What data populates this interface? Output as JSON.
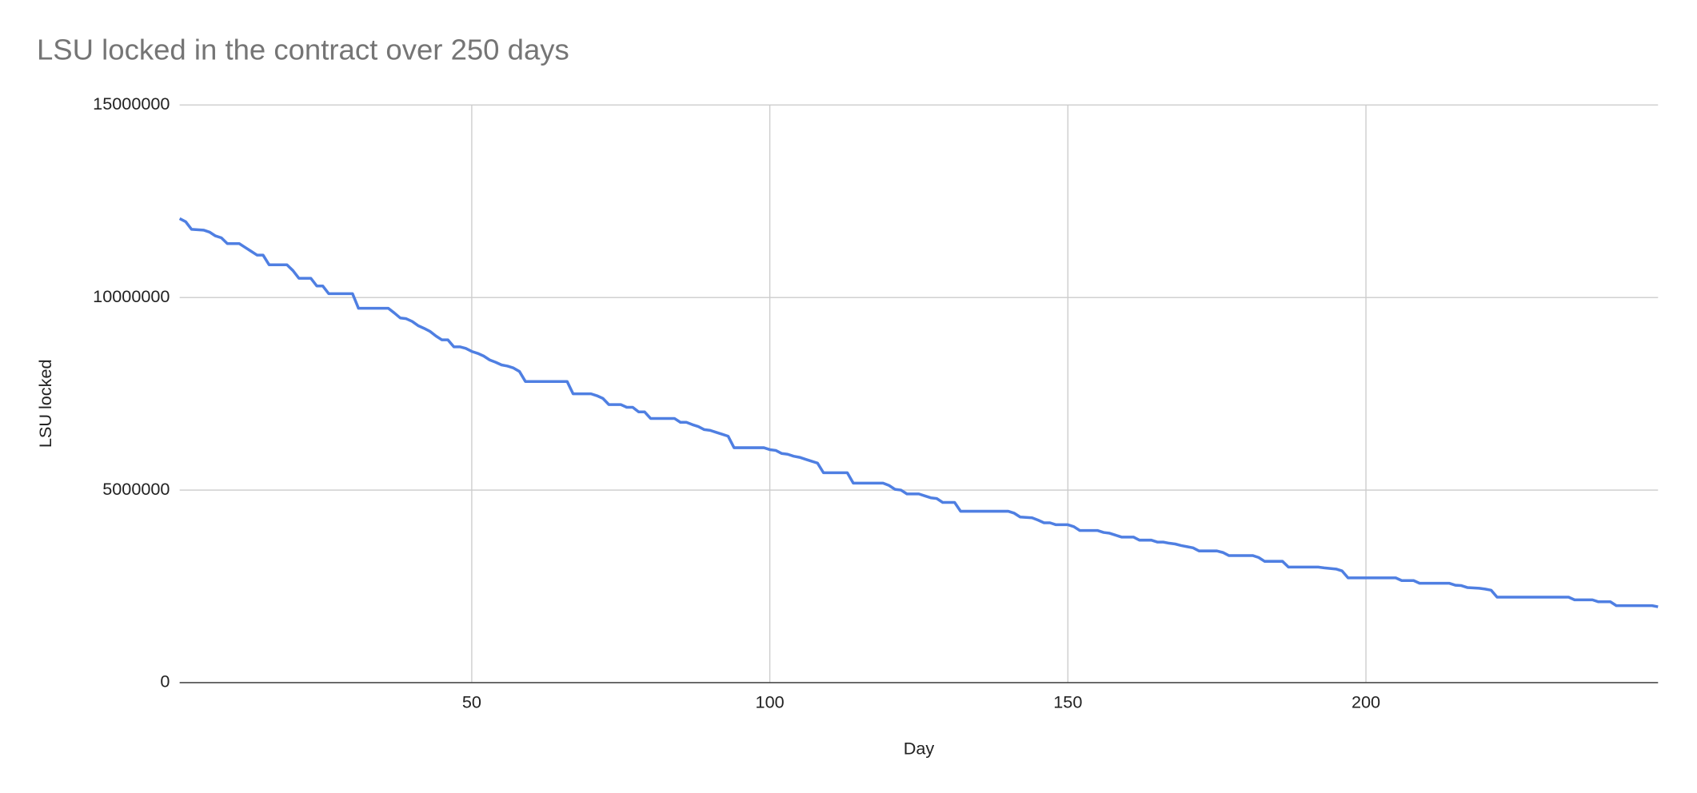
{
  "chart_data": {
    "type": "line",
    "title": "LSU locked in the contract over 250 days",
    "x_label": "Day",
    "y_label": "LSU locked",
    "xlim": [
      1,
      249
    ],
    "xticks": [
      50,
      100,
      150,
      200
    ],
    "ylim": [
      0,
      15000000
    ],
    "yticks": [
      0,
      5000000,
      10000000,
      15000000
    ],
    "grid": true,
    "series": [
      {
        "name": "LSU locked",
        "color": "#4f7fe2",
        "x": [
          1,
          2,
          3,
          5,
          6,
          7,
          8,
          9,
          11,
          12,
          13,
          14,
          15,
          16,
          19,
          20,
          21,
          23,
          24,
          25,
          26,
          30,
          31,
          36,
          37,
          38,
          39,
          40,
          41,
          42,
          43,
          44,
          45,
          46,
          47,
          48,
          49,
          50,
          51,
          52,
          53,
          54,
          55,
          56,
          57,
          58,
          59,
          66,
          67,
          70,
          71,
          72,
          73,
          75,
          76,
          77,
          78,
          79,
          80,
          84,
          85,
          86,
          87,
          88,
          89,
          90,
          91,
          92,
          93,
          94,
          99,
          100,
          101,
          102,
          103,
          104,
          105,
          106,
          107,
          108,
          109,
          113,
          114,
          119,
          120,
          121,
          122,
          123,
          125,
          126,
          127,
          128,
          129,
          131,
          132,
          140,
          141,
          142,
          144,
          145,
          146,
          147,
          148,
          150,
          151,
          152,
          155,
          156,
          157,
          158,
          159,
          161,
          162,
          164,
          165,
          166,
          167,
          168,
          169,
          170,
          171,
          172,
          175,
          176,
          177,
          181,
          182,
          183,
          186,
          187,
          192,
          193,
          195,
          196,
          197,
          205,
          206,
          208,
          209,
          214,
          215,
          216,
          217,
          219,
          220,
          221,
          222,
          234,
          235,
          238,
          239,
          241,
          242,
          248,
          249
        ],
        "values": [
          12050000,
          11970000,
          11770000,
          11750000,
          11700000,
          11600000,
          11550000,
          11400000,
          11400000,
          11300000,
          11200000,
          11100000,
          11100000,
          10850000,
          10850000,
          10700000,
          10500000,
          10500000,
          10300000,
          10300000,
          10100000,
          10100000,
          9720000,
          9720000,
          9600000,
          9470000,
          9450000,
          9380000,
          9270000,
          9200000,
          9120000,
          9000000,
          8900000,
          8900000,
          8720000,
          8720000,
          8680000,
          8600000,
          8550000,
          8480000,
          8380000,
          8320000,
          8250000,
          8220000,
          8170000,
          8080000,
          7820000,
          7820000,
          7500000,
          7500000,
          7450000,
          7380000,
          7220000,
          7220000,
          7150000,
          7150000,
          7030000,
          7030000,
          6860000,
          6860000,
          6760000,
          6760000,
          6700000,
          6650000,
          6570000,
          6550000,
          6500000,
          6450000,
          6400000,
          6100000,
          6100000,
          6050000,
          6030000,
          5950000,
          5930000,
          5880000,
          5850000,
          5800000,
          5750000,
          5700000,
          5450000,
          5450000,
          5180000,
          5180000,
          5120000,
          5020000,
          5000000,
          4900000,
          4900000,
          4850000,
          4800000,
          4780000,
          4680000,
          4680000,
          4450000,
          4450000,
          4400000,
          4300000,
          4280000,
          4220000,
          4150000,
          4150000,
          4100000,
          4100000,
          4050000,
          3950000,
          3950000,
          3900000,
          3880000,
          3830000,
          3780000,
          3780000,
          3700000,
          3700000,
          3650000,
          3650000,
          3620000,
          3600000,
          3560000,
          3530000,
          3500000,
          3420000,
          3420000,
          3380000,
          3300000,
          3300000,
          3250000,
          3150000,
          3150000,
          3000000,
          3000000,
          2980000,
          2950000,
          2900000,
          2720000,
          2720000,
          2650000,
          2650000,
          2580000,
          2580000,
          2530000,
          2520000,
          2470000,
          2450000,
          2430000,
          2400000,
          2220000,
          2220000,
          2150000,
          2150000,
          2100000,
          2100000,
          2000000,
          2000000,
          1970000
        ]
      }
    ]
  }
}
